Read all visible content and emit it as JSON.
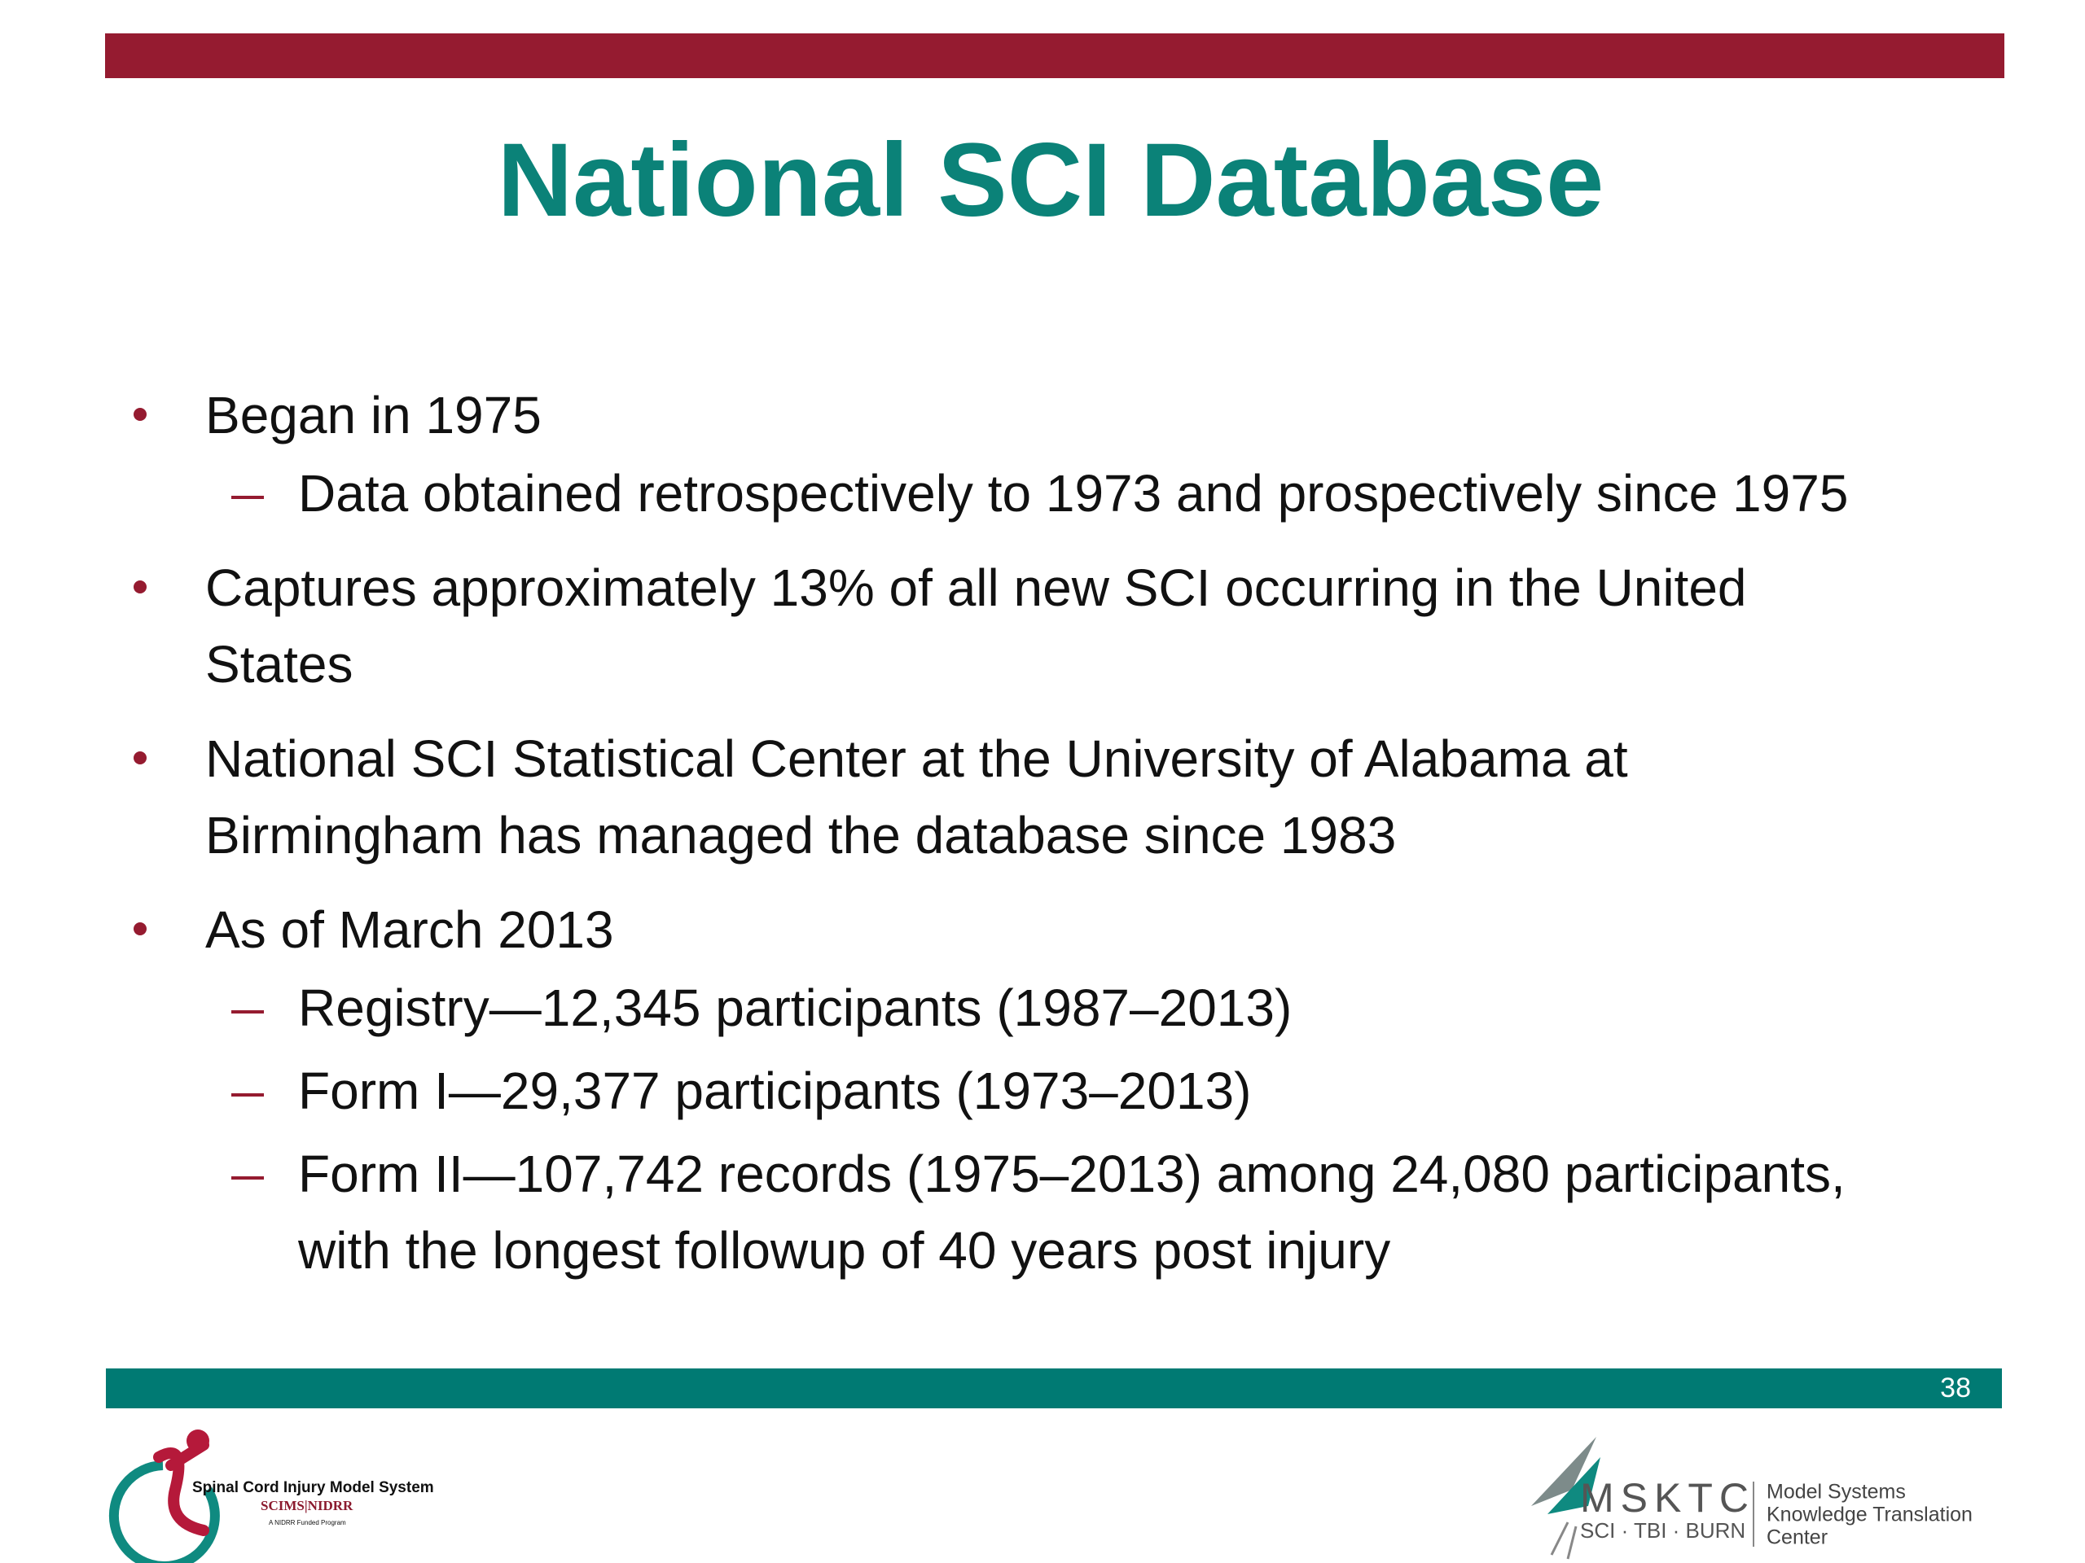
{
  "header": {
    "title": "National SCI Database"
  },
  "bullets": [
    {
      "lines": [
        "Began in 1975"
      ],
      "subs": [
        {
          "lines": [
            "Data obtained retrospectively to 1973 and prospectively since 1975"
          ]
        }
      ]
    },
    {
      "lines": [
        "Captures approximately 13% of all new SCI occurring in the United",
        "States"
      ],
      "subs": []
    },
    {
      "lines": [
        "National SCI Statistical Center at the University of Alabama at",
        "Birmingham has managed the database since 1983"
      ],
      "subs": []
    },
    {
      "lines": [
        "As of March 2013"
      ],
      "subs": [
        {
          "lines": [
            "Registry—12,345 participants (1987–2013)"
          ]
        },
        {
          "lines": [
            "Form I—29,377 participants (1973–2013)"
          ]
        },
        {
          "lines": [
            "Form II—107,742 records (1975–2013) among 24,080 participants,",
            "with the longest followup of 40 years post injury"
          ]
        }
      ]
    }
  ],
  "footer": {
    "page_number": "38",
    "left_logo": {
      "name": "Spinal Cord Injury Model System",
      "org": "SCIMS|NIDRR",
      "tagline": "A NIDRR Funded Program"
    },
    "right_logo": {
      "acronym": "MSKTC",
      "areas": "SCI · TBI · BURN",
      "name_lines": [
        "Model Systems",
        "Knowledge Translation",
        "Center"
      ]
    }
  }
}
